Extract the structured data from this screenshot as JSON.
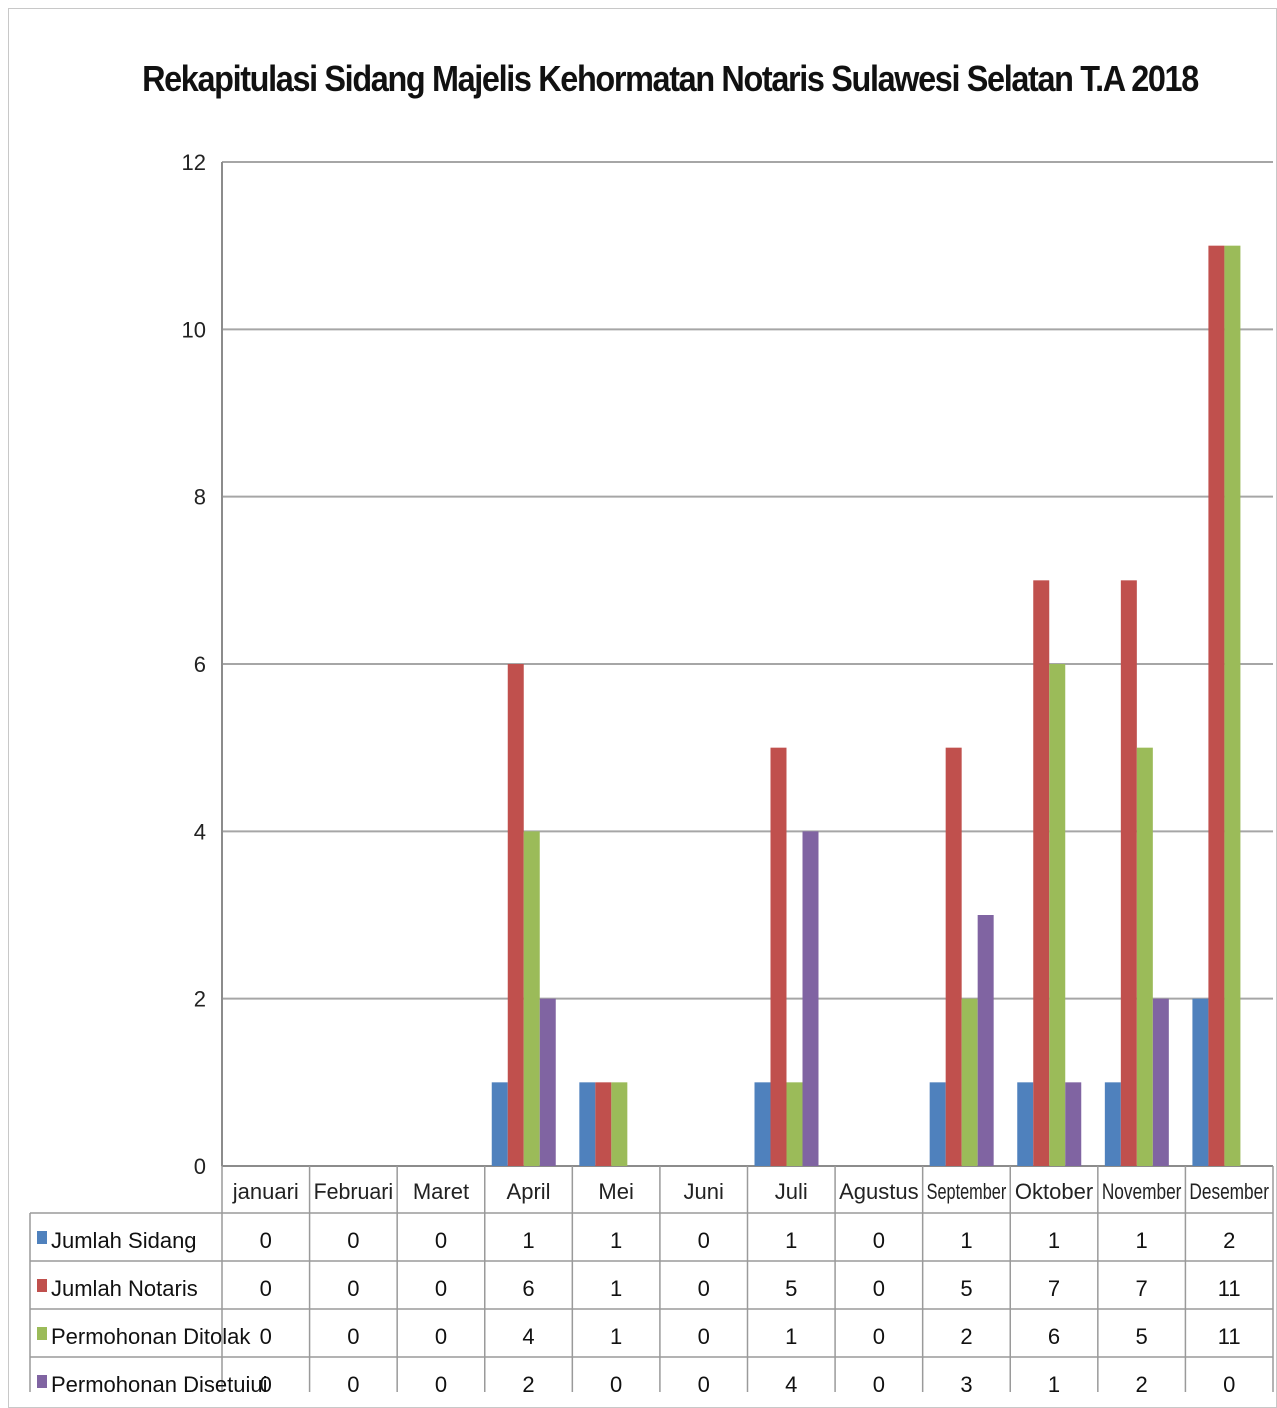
{
  "chart_data": {
    "type": "bar",
    "title": "Rekapitulasi Sidang Majelis Kehormatan Notaris Sulawesi Selatan T.A 2018",
    "categories": [
      "januari",
      "Februari",
      "Maret",
      "April",
      "Mei",
      "Juni",
      "Juli",
      "Agustus",
      "September",
      "Oktober",
      "November",
      "Desember"
    ],
    "series": [
      {
        "name": "Jumlah Sidang",
        "color": "#4f81bd",
        "values": [
          0,
          0,
          0,
          1,
          1,
          0,
          1,
          0,
          1,
          1,
          1,
          2
        ]
      },
      {
        "name": "Jumlah Notaris",
        "color": "#c0504d",
        "values": [
          0,
          0,
          0,
          6,
          1,
          0,
          5,
          0,
          5,
          7,
          7,
          11
        ]
      },
      {
        "name": "Permohonan Ditolak",
        "color": "#9bbb59",
        "values": [
          0,
          0,
          0,
          4,
          1,
          0,
          1,
          0,
          2,
          6,
          5,
          11
        ]
      },
      {
        "name": "Permohonan Disetujui",
        "color": "#8064a2",
        "values": [
          0,
          0,
          0,
          2,
          0,
          0,
          4,
          0,
          3,
          1,
          2,
          0
        ]
      }
    ],
    "ylim": [
      0,
      12
    ],
    "yticks": [
      0,
      2,
      4,
      6,
      8,
      10,
      12
    ],
    "grid": true,
    "legend": "data-table"
  }
}
